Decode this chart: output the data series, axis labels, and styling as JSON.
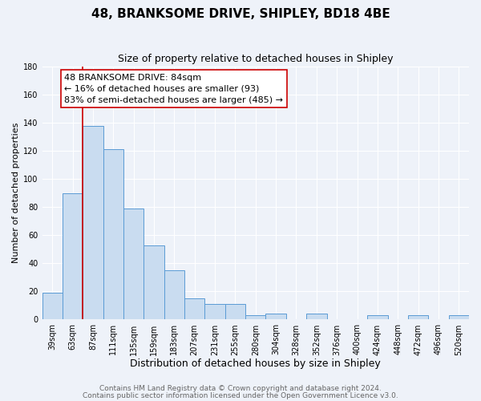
{
  "title": "48, BRANKSOME DRIVE, SHIPLEY, BD18 4BE",
  "subtitle": "Size of property relative to detached houses in Shipley",
  "xlabel": "Distribution of detached houses by size in Shipley",
  "ylabel": "Number of detached properties",
  "bar_labels": [
    "39sqm",
    "63sqm",
    "87sqm",
    "111sqm",
    "135sqm",
    "159sqm",
    "183sqm",
    "207sqm",
    "231sqm",
    "255sqm",
    "280sqm",
    "304sqm",
    "328sqm",
    "352sqm",
    "376sqm",
    "400sqm",
    "424sqm",
    "448sqm",
    "472sqm",
    "496sqm",
    "520sqm"
  ],
  "bar_values": [
    19,
    90,
    138,
    121,
    79,
    53,
    35,
    15,
    11,
    11,
    3,
    4,
    0,
    4,
    0,
    0,
    3,
    0,
    3,
    0,
    3
  ],
  "bar_color": "#c9dcf0",
  "bar_edge_color": "#5b9bd5",
  "ylim": [
    0,
    180
  ],
  "yticks": [
    0,
    20,
    40,
    60,
    80,
    100,
    120,
    140,
    160,
    180
  ],
  "vline_color": "#cc0000",
  "annotation_text": "48 BRANKSOME DRIVE: 84sqm\n← 16% of detached houses are smaller (93)\n83% of semi-detached houses are larger (485) →",
  "annotation_box_color": "#ffffff",
  "annotation_box_edgecolor": "#cc0000",
  "footer_line1": "Contains HM Land Registry data © Crown copyright and database right 2024.",
  "footer_line2": "Contains public sector information licensed under the Open Government Licence v3.0.",
  "background_color": "#eef2f9",
  "grid_color": "#ffffff",
  "title_fontsize": 11,
  "subtitle_fontsize": 9,
  "xlabel_fontsize": 9,
  "ylabel_fontsize": 8,
  "tick_fontsize": 7,
  "annotation_fontsize": 8,
  "footer_fontsize": 6.5
}
